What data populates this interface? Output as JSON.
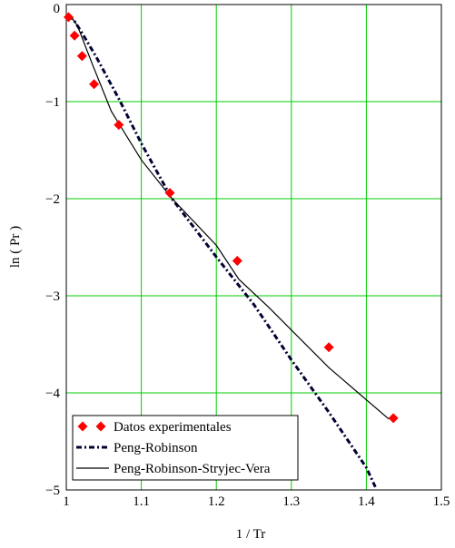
{
  "chart_data": {
    "type": "line",
    "title": "",
    "xlabel": "1 / Tr",
    "ylabel": "ln ( Pr )",
    "xlim": [
      1.0,
      1.5
    ],
    "ylim": [
      -5,
      0
    ],
    "x_ticks": [
      1,
      1.1,
      1.2,
      1.3,
      1.4,
      1.5
    ],
    "x_tick_labels": [
      "1",
      "1.1",
      "1.2",
      "1.3",
      "1.4",
      "1.5"
    ],
    "y_ticks": [
      0,
      -1,
      -2,
      -3,
      -4,
      -5
    ],
    "y_tick_labels": [
      "0",
      "−1",
      "−2",
      "−3",
      "−4",
      "−5"
    ],
    "grid": true,
    "grid_color": "#00cc00",
    "legend_position": "bottom-left",
    "series": [
      {
        "name": "Datos experimentales",
        "kind": "scatter",
        "marker": "diamond",
        "color": "#ff0000",
        "x": [
          1.003,
          1.011,
          1.021,
          1.037,
          1.07,
          1.138,
          1.228,
          1.35,
          1.436
        ],
        "y": [
          -0.13,
          -0.32,
          -0.53,
          -0.82,
          -1.24,
          -1.94,
          -2.64,
          -3.53,
          -4.26
        ]
      },
      {
        "name": "Peng-Robinson",
        "kind": "line",
        "style": "dash-dot",
        "color": "#000033",
        "x": [
          1.003,
          1.01,
          1.02,
          1.04,
          1.07,
          1.1,
          1.14,
          1.2,
          1.25,
          1.3,
          1.35,
          1.4,
          1.412
        ],
        "y": [
          -0.11,
          -0.16,
          -0.28,
          -0.54,
          -0.97,
          -1.43,
          -1.99,
          -2.6,
          -3.09,
          -3.66,
          -4.2,
          -4.77,
          -4.97
        ]
      },
      {
        "name": "Peng-Robinson-Stryjec-Vera",
        "kind": "line",
        "style": "solid",
        "color": "#000000",
        "x": [
          1.003,
          1.015,
          1.025,
          1.035,
          1.06,
          1.1,
          1.14,
          1.2,
          1.23,
          1.27,
          1.35,
          1.43
        ],
        "y": [
          -0.09,
          -0.22,
          -0.42,
          -0.62,
          -1.1,
          -1.6,
          -1.99,
          -2.48,
          -2.83,
          -3.12,
          -3.74,
          -4.27
        ]
      }
    ]
  }
}
